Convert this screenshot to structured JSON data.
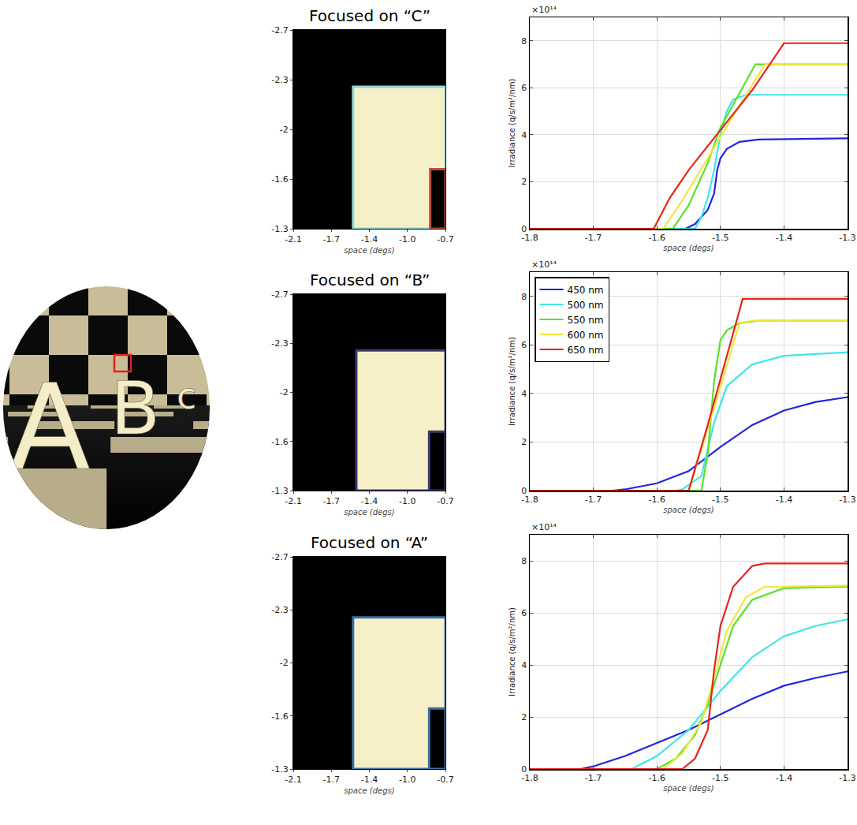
{
  "scene": {
    "letters": [
      {
        "text": "A"
      },
      {
        "text": "B"
      },
      {
        "text": "c"
      }
    ]
  },
  "chart_data": [
    {
      "type": "image",
      "title": "Focused on “C”",
      "xlabel": "space (degs)",
      "xlim": [
        -2.1,
        -0.7
      ],
      "ylim": [
        -1.3,
        -2.7
      ],
      "xticks": [
        -2.1,
        {
          "value": -1.75,
          "label": "-1.7"
        },
        -1.4,
        {
          "value": -1.05,
          "label": "-1.0"
        },
        -0.7
      ],
      "yticks": [
        -2.7,
        {
          "value": -2.35,
          "label": "-2.3"
        },
        -2.0,
        {
          "value": -1.65,
          "label": "-1.6"
        },
        -1.3
      ],
      "regions": [
        {
          "x0": -2.1,
          "x1": -0.7,
          "y0": -2.7,
          "y1": -1.3,
          "color": "#000000",
          "edge_color": "#000000"
        },
        {
          "x0": -1.55,
          "x1": -0.7,
          "y0": -2.3,
          "y1": -1.3,
          "color": "#f6f0c8",
          "edge_color": "#8fd8d0"
        },
        {
          "x0": -0.84,
          "x1": -0.7,
          "y0": -1.72,
          "y1": -1.3,
          "color": "#000000",
          "edge_color": "#c04a3a"
        }
      ]
    },
    {
      "type": "line",
      "xlabel": "space (degs)",
      "ylabel": "Irradiance (q/s/m²/nm)",
      "y_scale_label": "×10¹⁴",
      "xlim": [
        -1.8,
        -1.3
      ],
      "ylim": [
        0,
        9
      ],
      "xticks": [
        -1.8,
        -1.7,
        -1.6,
        -1.5,
        -1.4,
        -1.3
      ],
      "yticks": [
        0,
        2,
        4,
        6,
        8
      ],
      "grid": true,
      "series": [
        {
          "name": "450 nm",
          "color": "#2424e0",
          "x": [
            -1.8,
            -1.555,
            -1.54,
            -1.52,
            -1.51,
            -1.505,
            -1.5,
            -1.49,
            -1.47,
            -1.44,
            -1.3
          ],
          "values": [
            0,
            0,
            0.2,
            0.8,
            1.5,
            2.5,
            3.0,
            3.4,
            3.7,
            3.8,
            3.85
          ]
        },
        {
          "name": "500 nm",
          "color": "#3fe6e6",
          "x": [
            -1.8,
            -1.54,
            -1.53,
            -1.52,
            -1.51,
            -1.5,
            -1.49,
            -1.48,
            -1.46,
            -1.3
          ],
          "values": [
            0,
            0,
            0.5,
            1.3,
            2.5,
            4.0,
            5.0,
            5.5,
            5.7,
            5.7
          ]
        },
        {
          "name": "550 nm",
          "color": "#5be02a",
          "x": [
            -1.8,
            -1.575,
            -1.55,
            -1.52,
            -1.5,
            -1.47,
            -1.445,
            -1.3
          ],
          "values": [
            0,
            0,
            1.0,
            2.8,
            4.3,
            5.8,
            7.0,
            7.0
          ]
        },
        {
          "name": "600 nm",
          "color": "#f2e640",
          "x": [
            -1.8,
            -1.59,
            -1.56,
            -1.52,
            -1.48,
            -1.43,
            -1.3
          ],
          "values": [
            0,
            0,
            1.2,
            3.0,
            4.8,
            7.0,
            7.0
          ]
        },
        {
          "name": "650 nm",
          "color": "#e8251d",
          "x": [
            -1.8,
            -1.605,
            -1.58,
            -1.55,
            -1.5,
            -1.45,
            -1.4,
            -1.3
          ],
          "values": [
            0,
            0,
            1.3,
            2.5,
            4.2,
            5.9,
            7.9,
            7.9
          ]
        }
      ]
    },
    {
      "type": "image",
      "title": "Focused on “B”",
      "xlabel": "space (degs)",
      "xlim": [
        -2.1,
        -0.7
      ],
      "ylim": [
        -1.3,
        -2.7
      ],
      "xticks": [
        -2.1,
        {
          "value": -1.75,
          "label": "-1.7"
        },
        -1.4,
        {
          "value": -1.05,
          "label": "-1.0"
        },
        -0.7
      ],
      "yticks": [
        -2.7,
        {
          "value": -2.35,
          "label": "-2.3"
        },
        -2.0,
        {
          "value": -1.65,
          "label": "-1.6"
        },
        -1.3
      ],
      "regions": [
        {
          "x0": -2.1,
          "x1": -0.7,
          "y0": -2.7,
          "y1": -1.3,
          "color": "#000000",
          "edge_color": "#000000"
        },
        {
          "x0": -1.52,
          "x1": -0.7,
          "y0": -2.3,
          "y1": -1.3,
          "color": "#f6f0c8",
          "edge_color": "#3a3a70"
        },
        {
          "x0": -0.85,
          "x1": -0.7,
          "y0": -1.72,
          "y1": -1.3,
          "color": "#000000",
          "edge_color": "#3a3a70"
        }
      ]
    },
    {
      "type": "line",
      "xlabel": "space (degs)",
      "ylabel": "Irradiance (q/s/m²/nm)",
      "y_scale_label": "×10¹⁴",
      "xlim": [
        -1.8,
        -1.3
      ],
      "ylim": [
        0,
        9
      ],
      "xticks": [
        -1.8,
        -1.7,
        -1.6,
        -1.5,
        -1.4,
        -1.3
      ],
      "yticks": [
        0,
        2,
        4,
        6,
        8
      ],
      "grid": true,
      "legend": "upper left",
      "series": [
        {
          "name": "450 nm",
          "color": "#2424e0",
          "x": [
            -1.8,
            -1.67,
            -1.65,
            -1.6,
            -1.55,
            -1.5,
            -1.45,
            -1.4,
            -1.35,
            -1.3
          ],
          "values": [
            0,
            0,
            0.05,
            0.3,
            0.8,
            1.8,
            2.7,
            3.3,
            3.65,
            3.85
          ]
        },
        {
          "name": "500 nm",
          "color": "#3fe6e6",
          "x": [
            -1.8,
            -1.57,
            -1.56,
            -1.53,
            -1.51,
            -1.49,
            -1.45,
            -1.4,
            -1.3
          ],
          "values": [
            0,
            0,
            0.05,
            0.6,
            2.8,
            4.3,
            5.2,
            5.55,
            5.7
          ]
        },
        {
          "name": "550 nm",
          "color": "#5be02a",
          "x": [
            -1.8,
            -1.53,
            -1.52,
            -1.51,
            -1.5,
            -1.49,
            -1.47,
            -1.44,
            -1.3
          ],
          "values": [
            0,
            0,
            1.5,
            4.5,
            6.2,
            6.6,
            6.9,
            7.0,
            7.0
          ]
        },
        {
          "name": "600 nm",
          "color": "#f2e640",
          "x": [
            -1.8,
            -1.55,
            -1.51,
            -1.47,
            -1.45,
            -1.3
          ],
          "values": [
            0,
            0,
            3.4,
            6.9,
            7.0,
            7.0
          ]
        },
        {
          "name": "650 nm",
          "color": "#e8251d",
          "x": [
            -1.8,
            -1.55,
            -1.52,
            -1.5,
            -1.465,
            -1.3
          ],
          "values": [
            0,
            0,
            2.7,
            4.6,
            7.9,
            7.9
          ]
        }
      ]
    },
    {
      "type": "image",
      "title": "Focused on “A”",
      "xlabel": "space (degs)",
      "xlim": [
        -2.1,
        -0.7
      ],
      "ylim": [
        -1.3,
        -2.7
      ],
      "xticks": [
        -2.1,
        {
          "value": -1.75,
          "label": "-1.7"
        },
        -1.4,
        {
          "value": -1.05,
          "label": "-1.0"
        },
        -0.7
      ],
      "yticks": [
        -2.7,
        {
          "value": -2.35,
          "label": "-2.3"
        },
        -2.0,
        {
          "value": -1.65,
          "label": "-1.6"
        },
        -1.3
      ],
      "regions": [
        {
          "x0": -2.1,
          "x1": -0.7,
          "y0": -2.7,
          "y1": -1.3,
          "color": "#000000",
          "edge_color": "#000000"
        },
        {
          "x0": -1.55,
          "x1": -0.7,
          "y0": -2.3,
          "y1": -1.3,
          "color": "#f6f0c8",
          "edge_color": "#3c6ea8"
        },
        {
          "x0": -0.85,
          "x1": -0.7,
          "y0": -1.7,
          "y1": -1.3,
          "color": "#000000",
          "edge_color": "#3c6ea8"
        }
      ]
    },
    {
      "type": "line",
      "xlabel": "space (degs)",
      "ylabel": "Irradiance (q/s/m²/nm)",
      "y_scale_label": "×10¹⁴",
      "xlim": [
        -1.8,
        -1.3
      ],
      "ylim": [
        0,
        9
      ],
      "xticks": [
        -1.8,
        -1.7,
        -1.6,
        -1.5,
        -1.4,
        -1.3
      ],
      "yticks": [
        0,
        2,
        4,
        6,
        8
      ],
      "grid": true,
      "series": [
        {
          "name": "450 nm",
          "color": "#2424e0",
          "x": [
            -1.8,
            -1.72,
            -1.7,
            -1.65,
            -1.6,
            -1.55,
            -1.5,
            -1.45,
            -1.4,
            -1.35,
            -1.3
          ],
          "values": [
            0,
            0,
            0.1,
            0.5,
            1.0,
            1.5,
            2.1,
            2.7,
            3.2,
            3.5,
            3.75
          ]
        },
        {
          "name": "500 nm",
          "color": "#3fe6e6",
          "x": [
            -1.8,
            -1.64,
            -1.6,
            -1.55,
            -1.5,
            -1.45,
            -1.4,
            -1.35,
            -1.3
          ],
          "values": [
            0,
            0,
            0.5,
            1.5,
            3.0,
            4.3,
            5.1,
            5.5,
            5.75
          ]
        },
        {
          "name": "550 nm",
          "color": "#5be02a",
          "x": [
            -1.8,
            -1.6,
            -1.57,
            -1.54,
            -1.52,
            -1.5,
            -1.48,
            -1.45,
            -1.4,
            -1.3
          ],
          "values": [
            0,
            0,
            0.4,
            1.3,
            2.5,
            4.0,
            5.5,
            6.5,
            6.95,
            7.0
          ]
        },
        {
          "name": "600 nm",
          "color": "#f2e640",
          "x": [
            -1.8,
            -1.59,
            -1.56,
            -1.53,
            -1.51,
            -1.49,
            -1.46,
            -1.43,
            -1.3
          ],
          "values": [
            0,
            0,
            0.6,
            1.8,
            3.5,
            5.3,
            6.6,
            7.0,
            7.05
          ]
        },
        {
          "name": "650 nm",
          "color": "#e8251d",
          "x": [
            -1.8,
            -1.56,
            -1.54,
            -1.52,
            -1.51,
            -1.5,
            -1.48,
            -1.45,
            -1.43,
            -1.3
          ],
          "values": [
            0,
            0,
            0.4,
            1.5,
            3.8,
            5.5,
            7.0,
            7.8,
            7.9,
            7.9
          ]
        }
      ]
    }
  ]
}
